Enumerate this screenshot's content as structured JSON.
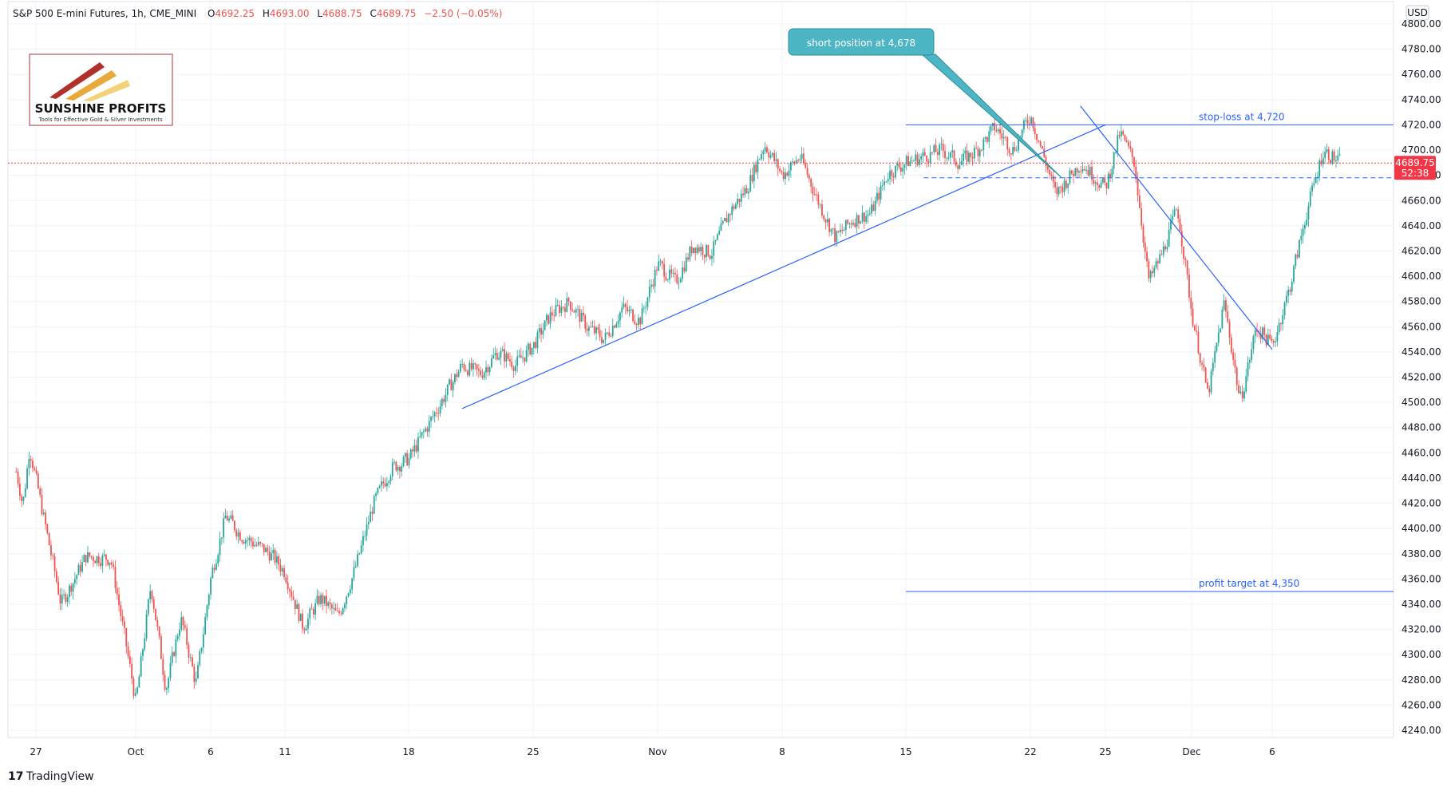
{
  "header": {
    "symbol": "S&P 500 E-mini Futures, 1h, CME_MINI",
    "open_label": "O",
    "open": "4692.25",
    "high_label": "H",
    "high": "4693.00",
    "low_label": "L",
    "low": "4688.75",
    "close_label": "C",
    "close": "4689.75",
    "change": "−2.50 (−0.05%)"
  },
  "currency": "USD",
  "logo": {
    "name": "SUNSHINE PROFITS",
    "tagline": "Tools for Effective Gold & Silver Investments"
  },
  "price_badge": {
    "price": "4689.75",
    "countdown": "52:38"
  },
  "footer": {
    "brand": "TradingView"
  },
  "colors": {
    "up": "#26a69a",
    "down": "#ef5350",
    "line": "#2962ff",
    "callout": "#4db6c5",
    "grid": "#f0f3fa",
    "badge": "#f23645"
  },
  "chart_data": {
    "type": "candlestick",
    "title": "S&P 500 E-mini Futures, 1h, CME_MINI",
    "ylim": [
      4230,
      4810
    ],
    "y_ticks": [
      4240,
      4260,
      4280,
      4300,
      4320,
      4340,
      4360,
      4380,
      4400,
      4420,
      4440,
      4460,
      4480,
      4500,
      4520,
      4540,
      4560,
      4580,
      4600,
      4620,
      4640,
      4660,
      4680,
      4700,
      4720,
      4740,
      4760,
      4780,
      4800
    ],
    "x_ticks": [
      "27",
      "Oct",
      "6",
      "11",
      "18",
      "25",
      "Nov",
      "8",
      "15",
      "22",
      "25",
      "Dec",
      "6"
    ],
    "grid": true,
    "path_points": [
      {
        "d": "Sep 24",
        "p": 4445
      },
      {
        "d": "Sep 25",
        "p": 4418
      },
      {
        "d": "Sep 26",
        "p": 4465
      },
      {
        "d": "Sep 27",
        "p": 4438
      },
      {
        "d": "Sep 28",
        "p": 4340
      },
      {
        "d": "Sep 29",
        "p": 4378
      },
      {
        "d": "Sep 30",
        "p": 4376
      },
      {
        "d": "Oct 1",
        "p": 4262
      },
      {
        "d": "Oct 2",
        "p": 4356
      },
      {
        "d": "Oct 3",
        "p": 4272
      },
      {
        "d": "Oct 4",
        "p": 4330
      },
      {
        "d": "Oct 5",
        "p": 4276
      },
      {
        "d": "Oct 6",
        "p": 4362
      },
      {
        "d": "Oct 7",
        "p": 4410
      },
      {
        "d": "Oct 8",
        "p": 4395
      },
      {
        "d": "Oct 10",
        "p": 4380
      },
      {
        "d": "Oct 11",
        "p": 4365
      },
      {
        "d": "Oct 12",
        "p": 4322
      },
      {
        "d": "Oct 13",
        "p": 4345
      },
      {
        "d": "Oct 14",
        "p": 4330
      },
      {
        "d": "Oct 15",
        "p": 4370
      },
      {
        "d": "Oct 16",
        "p": 4420
      },
      {
        "d": "Oct 17",
        "p": 4448
      },
      {
        "d": "Oct 18",
        "p": 4455
      },
      {
        "d": "Oct 19",
        "p": 4480
      },
      {
        "d": "Oct 20",
        "p": 4505
      },
      {
        "d": "Oct 21",
        "p": 4530
      },
      {
        "d": "Oct 22",
        "p": 4522
      },
      {
        "d": "Oct 23",
        "p": 4540
      },
      {
        "d": "Oct 24",
        "p": 4530
      },
      {
        "d": "Oct 25",
        "p": 4545
      },
      {
        "d": "Oct 26",
        "p": 4570
      },
      {
        "d": "Oct 27",
        "p": 4580
      },
      {
        "d": "Oct 28",
        "p": 4560
      },
      {
        "d": "Oct 29",
        "p": 4550
      },
      {
        "d": "Oct 30",
        "p": 4575
      },
      {
        "d": "Oct 31",
        "p": 4565
      },
      {
        "d": "Nov 1",
        "p": 4610
      },
      {
        "d": "Nov 2",
        "p": 4595
      },
      {
        "d": "Nov 3",
        "p": 4625
      },
      {
        "d": "Nov 4",
        "p": 4618
      },
      {
        "d": "Nov 5",
        "p": 4650
      },
      {
        "d": "Nov 6",
        "p": 4670
      },
      {
        "d": "Nov 7",
        "p": 4705
      },
      {
        "d": "Nov 8",
        "p": 4680
      },
      {
        "d": "Nov 9",
        "p": 4695
      },
      {
        "d": "Nov 10",
        "p": 4660
      },
      {
        "d": "Nov 11",
        "p": 4630
      },
      {
        "d": "Nov 12",
        "p": 4645
      },
      {
        "d": "Nov 13",
        "p": 4650
      },
      {
        "d": "Nov 14",
        "p": 4682
      },
      {
        "d": "Nov 15",
        "p": 4690
      },
      {
        "d": "Nov 16",
        "p": 4695
      },
      {
        "d": "Nov 17",
        "p": 4700
      },
      {
        "d": "Nov 18",
        "p": 4690
      },
      {
        "d": "Nov 19",
        "p": 4700
      },
      {
        "d": "Nov 20",
        "p": 4718
      },
      {
        "d": "Nov 21",
        "p": 4700
      },
      {
        "d": "Nov 22",
        "p": 4728
      },
      {
        "d": "Nov 23",
        "p": 4665
      },
      {
        "d": "Nov 24",
        "p": 4690
      },
      {
        "d": "Nov 25",
        "p": 4670
      },
      {
        "d": "Nov 26",
        "p": 4714
      },
      {
        "d": "Nov 27",
        "p": 4690
      },
      {
        "d": "Nov 28",
        "p": 4595
      },
      {
        "d": "Nov 29",
        "p": 4620
      },
      {
        "d": "Nov 30",
        "p": 4655
      },
      {
        "d": "Dec 1",
        "p": 4570
      },
      {
        "d": "Dec 2",
        "p": 4505
      },
      {
        "d": "Dec 3",
        "p": 4580
      },
      {
        "d": "Dec 4",
        "p": 4500
      },
      {
        "d": "Dec 5",
        "p": 4560
      },
      {
        "d": "Dec 6",
        "p": 4545
      },
      {
        "d": "Dec 7",
        "p": 4590
      },
      {
        "d": "Dec 8",
        "p": 4650
      },
      {
        "d": "Dec 9",
        "p": 4700
      },
      {
        "d": "Dec 10",
        "p": 4690
      }
    ],
    "levels": [
      {
        "label": "stop-loss at 4,720",
        "price": 4720
      },
      {
        "label": "profit target at 4,350",
        "price": 4350
      },
      {
        "label": "",
        "price": 4678,
        "style": "dashed"
      }
    ],
    "callout": {
      "label": "short position at 4,678"
    },
    "trendlines": [
      {
        "from": {
          "d": "Oct 21",
          "p": 4495
        },
        "to": {
          "d": "Nov 25",
          "p": 4720
        }
      },
      {
        "from": {
          "d": "Nov 24",
          "p": 4735
        },
        "to": {
          "d": "Dec 6",
          "p": 4542
        }
      }
    ],
    "current_price": 4689.75
  }
}
